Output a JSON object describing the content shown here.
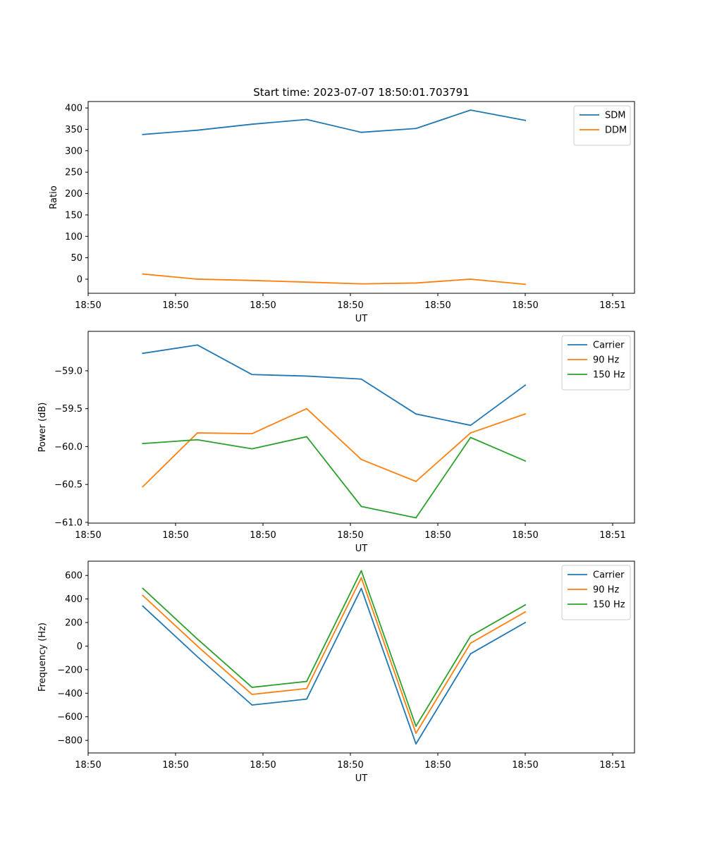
{
  "chart_data": [
    {
      "type": "line",
      "title": "Start time: 2023-07-07 18:50:01.703791",
      "xlabel": "UT",
      "ylabel": "Ratio",
      "x": [
        1,
        2,
        3,
        4,
        5,
        6,
        7,
        8
      ],
      "xlim": [
        0,
        10
      ],
      "xticks": [
        0,
        1.6,
        3.2,
        4.8,
        6.4,
        8,
        9.6
      ],
      "xticklabels": [
        "18:50",
        "18:50",
        "18:50",
        "18:50",
        "18:50",
        "18:50",
        "18:51"
      ],
      "ylim": [
        -33,
        415
      ],
      "yticks": [
        0,
        50,
        100,
        150,
        200,
        250,
        300,
        350,
        400
      ],
      "yticklabels": [
        "0",
        "50",
        "100",
        "150",
        "200",
        "250",
        "300",
        "350",
        "400"
      ],
      "legend": "top-right",
      "series": [
        {
          "name": "SDM",
          "color": "#1f77b4",
          "values": [
            338,
            348,
            362,
            373,
            343,
            352,
            395,
            371
          ]
        },
        {
          "name": "DDM",
          "color": "#ff7f0e",
          "values": [
            12,
            0,
            -3,
            -7,
            -11,
            -9,
            0,
            -12
          ]
        }
      ]
    },
    {
      "type": "line",
      "title": "",
      "xlabel": "UT",
      "ylabel": "Power (dB)",
      "x": [
        1,
        2,
        3,
        4,
        5,
        6,
        7,
        8
      ],
      "xlim": [
        0,
        10
      ],
      "xticks": [
        0,
        1.6,
        3.2,
        4.8,
        6.4,
        8,
        9.6
      ],
      "xticklabels": [
        "18:50",
        "18:50",
        "18:50",
        "18:50",
        "18:50",
        "18:50",
        "18:51"
      ],
      "ylim": [
        -61.01,
        -58.48
      ],
      "yticks": [
        -61,
        -60.5,
        -60,
        -59.5,
        -59
      ],
      "yticklabels": [
        "−61.0",
        "−60.5",
        "−60.0",
        "−59.5",
        "−59.0"
      ],
      "legend": "top-right",
      "series": [
        {
          "name": "Carrier",
          "color": "#1f77b4",
          "values": [
            -58.77,
            -58.66,
            -59.05,
            -59.07,
            -59.11,
            -59.57,
            -59.72,
            -59.19
          ]
        },
        {
          "name": "90 Hz",
          "color": "#ff7f0e",
          "values": [
            -60.53,
            -59.82,
            -59.83,
            -59.5,
            -60.17,
            -60.46,
            -59.82,
            -59.57
          ]
        },
        {
          "name": "150 Hz",
          "color": "#2ca02c",
          "values": [
            -59.96,
            -59.91,
            -60.03,
            -59.87,
            -60.79,
            -60.94,
            -59.88,
            -60.19
          ]
        }
      ]
    },
    {
      "type": "line",
      "title": "",
      "xlabel": "UT",
      "ylabel": "Frequency (Hz)",
      "x": [
        1,
        2,
        3,
        4,
        5,
        6,
        7,
        8
      ],
      "xlim": [
        0,
        10
      ],
      "xticks": [
        0,
        1.6,
        3.2,
        4.8,
        6.4,
        8,
        9.6
      ],
      "xticklabels": [
        "18:50",
        "18:50",
        "18:50",
        "18:50",
        "18:50",
        "18:50",
        "18:51"
      ],
      "ylim": [
        -907,
        721
      ],
      "yticks": [
        -800,
        -600,
        -400,
        -200,
        0,
        200,
        400,
        600
      ],
      "yticklabels": [
        "−800",
        "−600",
        "−400",
        "−200",
        "0",
        "200",
        "400",
        "600"
      ],
      "legend": "top-right",
      "series": [
        {
          "name": "Carrier",
          "color": "#1f77b4",
          "values": [
            340,
            -90,
            -500,
            -450,
            490,
            -830,
            -65,
            200
          ]
        },
        {
          "name": "90 Hz",
          "color": "#ff7f0e",
          "values": [
            430,
            0,
            -410,
            -360,
            580,
            -740,
            25,
            290
          ]
        },
        {
          "name": "150 Hz",
          "color": "#2ca02c",
          "values": [
            490,
            60,
            -350,
            -300,
            640,
            -680,
            85,
            350
          ]
        }
      ]
    }
  ]
}
